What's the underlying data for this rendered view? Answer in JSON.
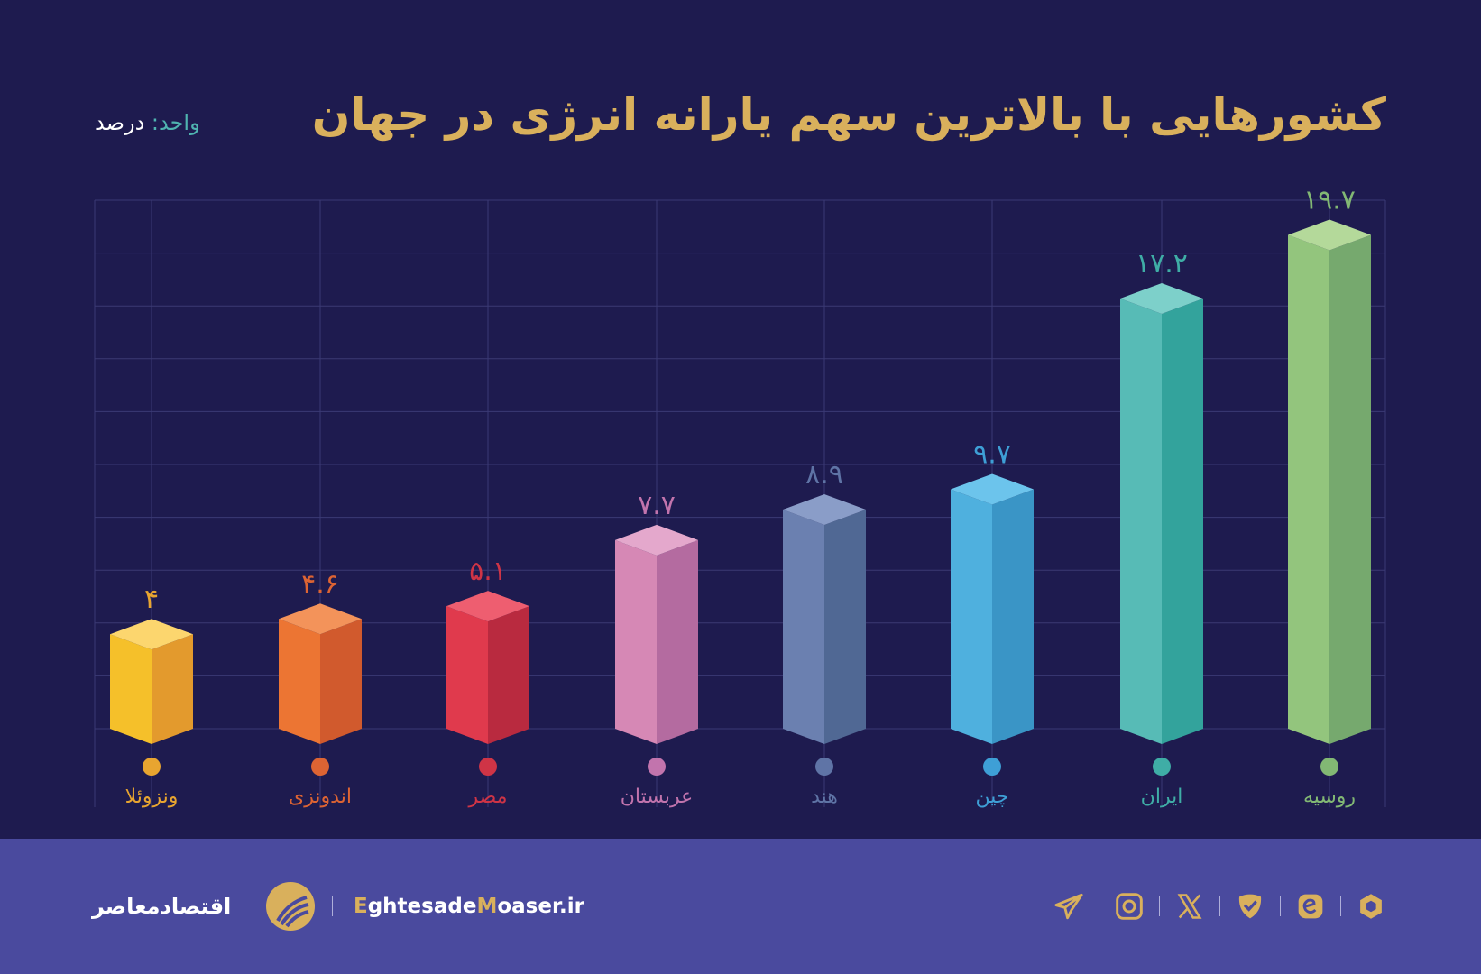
{
  "title": "کشورهایی با بالاترین سهم یارانه انرژی در جهان",
  "unit": {
    "key": "واحد:",
    "value": "درصد"
  },
  "chart_data": {
    "type": "bar",
    "style": "3d-isometric",
    "direction": "rtl",
    "title": "کشورهایی با بالاترین سهم یارانه انرژی در جهان",
    "ylabel": "درصد",
    "grid": true,
    "ylim": [
      0,
      20
    ],
    "categories": [
      "روسیه",
      "ایران",
      "چین",
      "هند",
      "عربستان",
      "مصر",
      "اندونزی",
      "ونزوئلا"
    ],
    "values": [
      19.7,
      17.2,
      9.7,
      8.9,
      7.7,
      5.1,
      4.6,
      4
    ],
    "value_labels": [
      "۱۹.۷",
      "۱۷.۲",
      "۹.۷",
      "۸.۹",
      "۷.۷",
      "۵.۱",
      "۴.۶",
      "۴"
    ],
    "colors": [
      {
        "top": "#b4d99a",
        "left": "#93c57d",
        "right": "#76a96e",
        "label": "#82b874"
      },
      {
        "top": "#7dd0ca",
        "left": "#57bbb6",
        "right": "#33a39c",
        "label": "#3fada6"
      },
      {
        "top": "#6cc4ec",
        "left": "#4fb0de",
        "right": "#3a95c6",
        "label": "#3e9fd6"
      },
      {
        "top": "#8a9dc8",
        "left": "#6b80b0",
        "right": "#506894",
        "label": "#5f74a6"
      },
      {
        "top": "#e4a8cc",
        "left": "#d688b5",
        "right": "#b46ba0",
        "label": "#c274ad"
      },
      {
        "top": "#ee5e70",
        "left": "#e03a4d",
        "right": "#b92a3f",
        "label": "#cf3446"
      },
      {
        "top": "#f3935a",
        "left": "#ec7533",
        "right": "#d15a2d",
        "label": "#dd6433"
      },
      {
        "top": "#fcd66e",
        "left": "#f5c02a",
        "right": "#e39a2d",
        "label": "#e8a530"
      }
    ]
  },
  "footer": {
    "brand": "اقتصادمعاصر",
    "site": {
      "e": "E",
      "part1": "ghtesade",
      "m": "M",
      "part2": "oaser.ir"
    },
    "socials": [
      "telegram-icon",
      "instagram-icon",
      "x-icon",
      "shield-check-icon",
      "eitaa-icon",
      "hexagon-icon"
    ],
    "accent": "#d9b05c"
  }
}
